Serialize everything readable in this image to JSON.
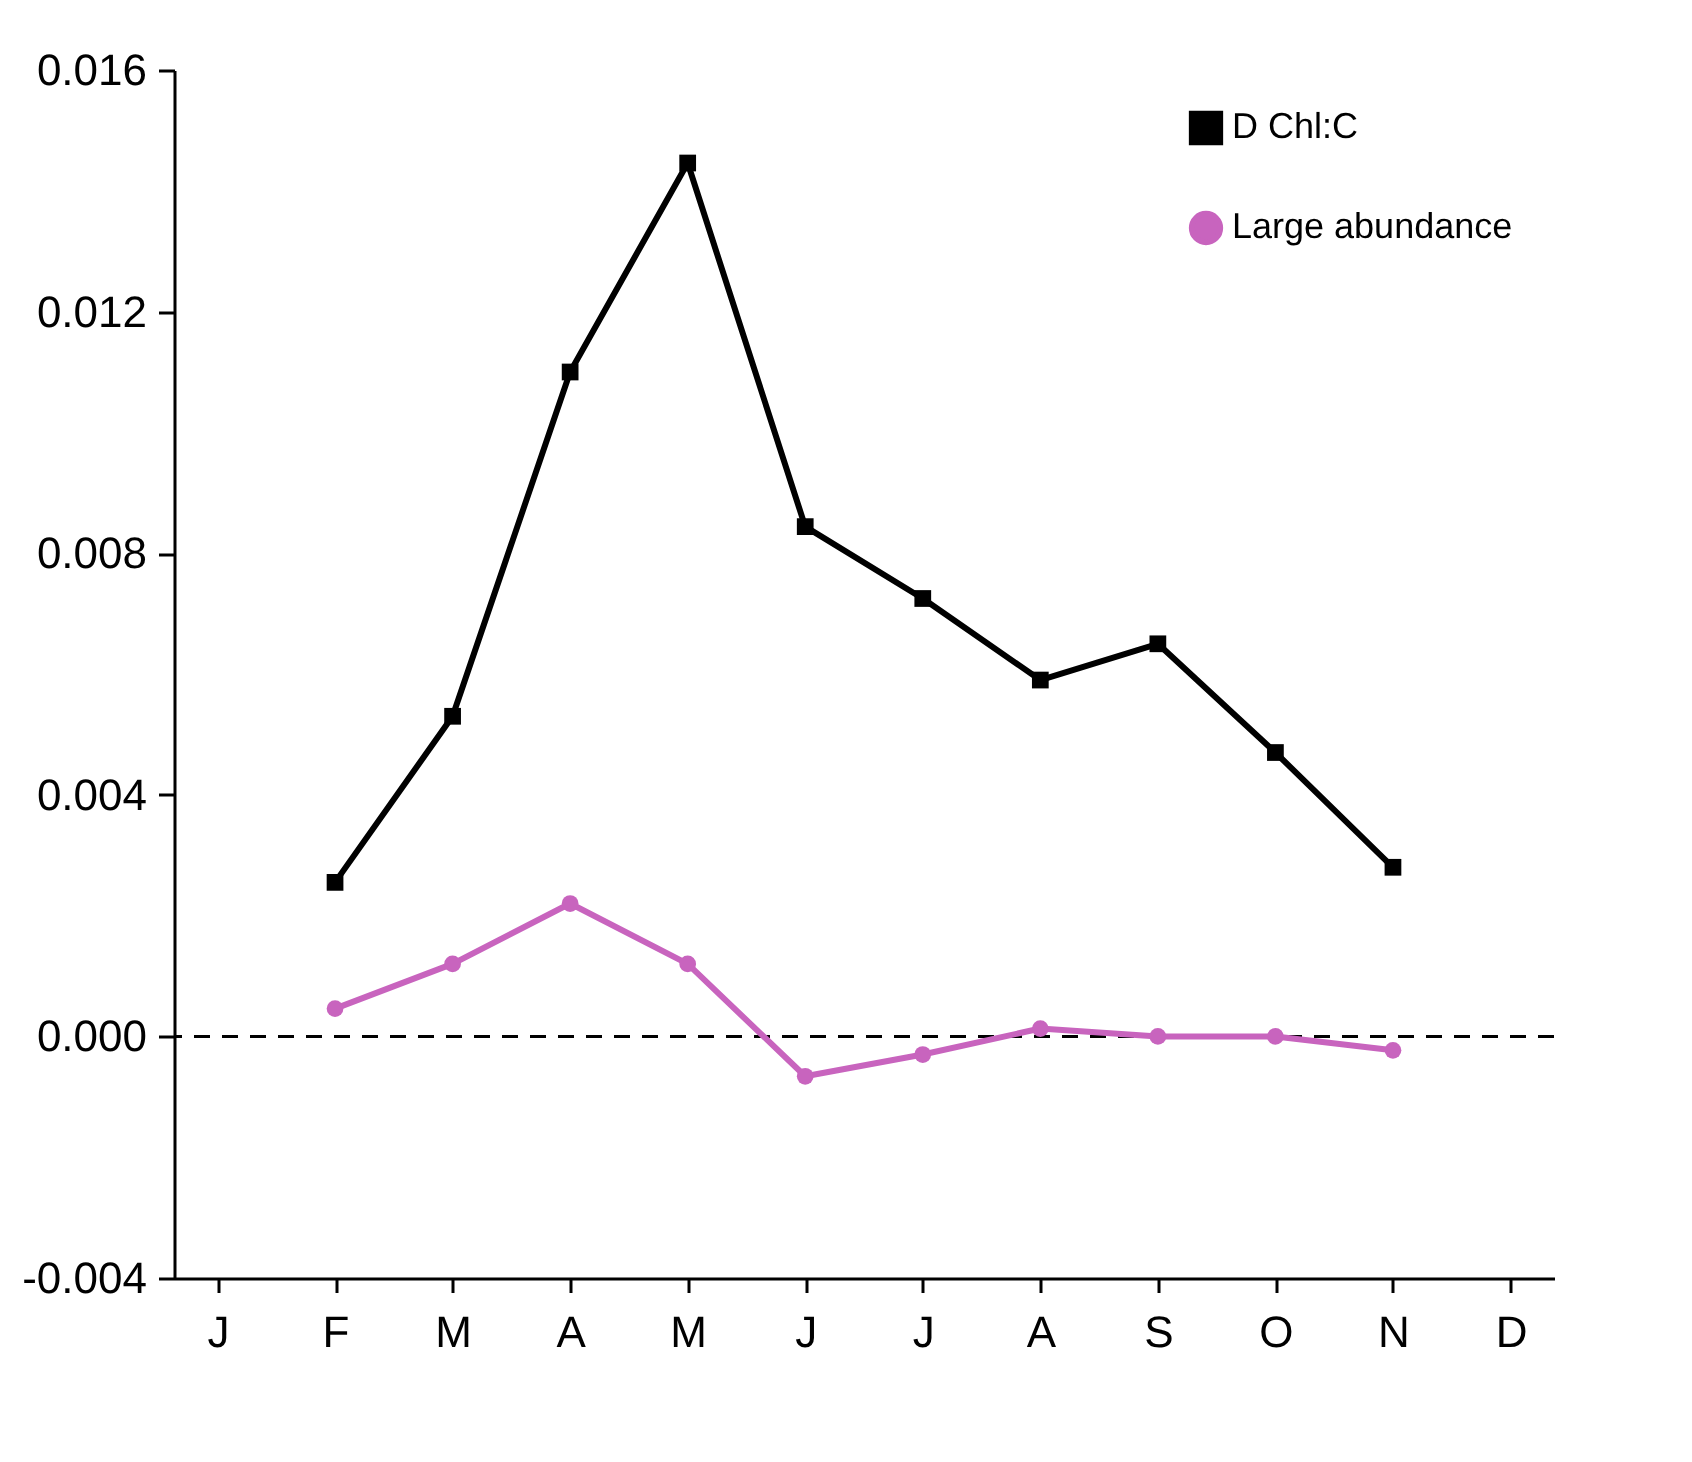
{
  "chart_data": {
    "type": "line",
    "categories": [
      "J",
      "F",
      "M",
      "A",
      "M",
      "J",
      "J",
      "A",
      "S",
      "O",
      "N",
      "D"
    ],
    "series": [
      {
        "name": "D Chl:C",
        "color": "#000000",
        "marker": "square",
        "values": [
          null,
          0.00255,
          0.0053,
          0.011,
          0.01446,
          0.00844,
          0.00725,
          0.0059,
          0.0065,
          0.0047,
          0.0028,
          null
        ]
      },
      {
        "name": "Large abundance",
        "color": "#c864be",
        "marker": "circle",
        "values": [
          null,
          0.00046,
          0.0012,
          0.0022,
          0.0012,
          -0.00066,
          -0.0003,
          0.00013,
          0,
          0,
          -0.00023,
          null
        ]
      }
    ],
    "ylim": [
      -0.004,
      0.016
    ],
    "yticks": [
      -0.004,
      {
        "value": 0,
        "label": "0.000"
      },
      0.004,
      0.008,
      0.012,
      0.016
    ],
    "ref_lines": [
      {
        "axis": "y",
        "value": 0,
        "color": "#000000",
        "line_style": "dashed"
      }
    ],
    "grid": false,
    "legend": "top right",
    "line_style": "solid"
  }
}
